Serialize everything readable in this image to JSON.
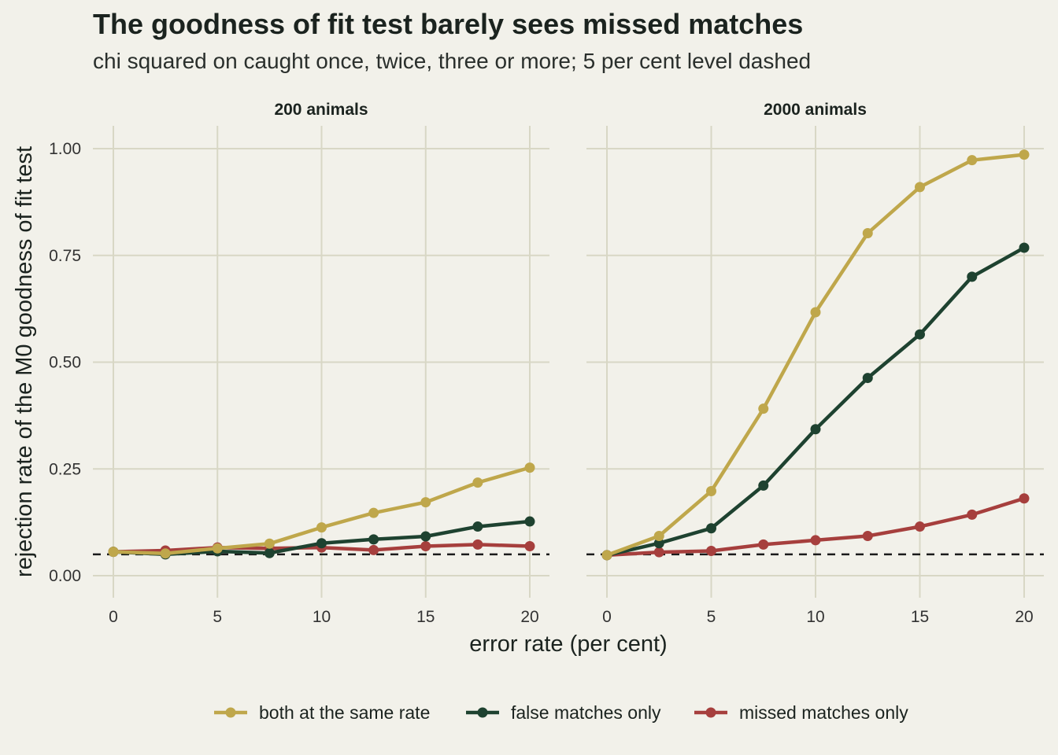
{
  "header": {
    "title": "The goodness of fit test barely sees missed matches",
    "subtitle": "chi squared on caught once, twice, three or more; 5 per cent level dashed"
  },
  "chart_data": {
    "type": "line",
    "title": "The goodness of fit test barely sees missed matches",
    "subtitle": "chi squared on caught once, twice, three or more; 5 per cent level dashed",
    "xlabel": "error rate (per cent)",
    "ylabel": "rejection rate of the M0 goodness of fit test",
    "xlim": [
      0,
      20
    ],
    "ylim": [
      0,
      1
    ],
    "x_ticks": [
      0,
      5,
      10,
      15,
      20
    ],
    "y_ticks": [
      0,
      0.25,
      0.5,
      0.75,
      1.0
    ],
    "y_tick_labels": [
      "0.00",
      "0.25",
      "0.50",
      "0.75",
      "1.00"
    ],
    "reference_line": {
      "y": 0.05,
      "style": "dashed"
    },
    "grid": true,
    "legend_position": "bottom",
    "x": [
      0,
      2.5,
      5,
      7.5,
      10,
      12.5,
      15,
      17.5,
      20
    ],
    "panels": [
      {
        "label": "200 animals",
        "series": [
          {
            "name": "both at the same rate",
            "color": "#bfa74b",
            "values": [
              0.056,
              0.052,
              0.064,
              0.075,
              0.113,
              0.147,
              0.172,
              0.218,
              0.253
            ]
          },
          {
            "name": "false matches only",
            "color": "#1e4230",
            "values": [
              0.056,
              0.05,
              0.057,
              0.053,
              0.076,
              0.085,
              0.092,
              0.115,
              0.127
            ]
          },
          {
            "name": "missed matches only",
            "color": "#a63f3d",
            "values": [
              0.056,
              0.059,
              0.066,
              0.064,
              0.066,
              0.06,
              0.069,
              0.073,
              0.069
            ]
          }
        ]
      },
      {
        "label": "2000 animals",
        "series": [
          {
            "name": "both at the same rate",
            "color": "#bfa74b",
            "values": [
              0.048,
              0.093,
              0.198,
              0.391,
              0.617,
              0.802,
              0.91,
              0.973,
              0.986
            ]
          },
          {
            "name": "false matches only",
            "color": "#1e4230",
            "values": [
              0.048,
              0.076,
              0.111,
              0.211,
              0.343,
              0.463,
              0.565,
              0.7,
              0.768
            ]
          },
          {
            "name": "missed matches only",
            "color": "#a63f3d",
            "values": [
              0.048,
              0.055,
              0.058,
              0.073,
              0.083,
              0.093,
              0.115,
              0.143,
              0.181
            ]
          }
        ]
      }
    ]
  }
}
